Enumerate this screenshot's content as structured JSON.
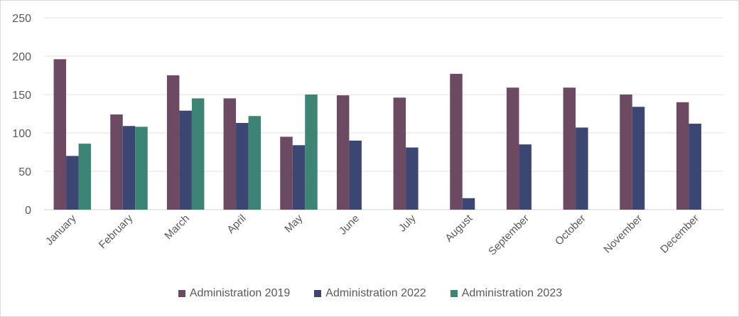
{
  "chart_data": {
    "type": "bar",
    "categories": [
      "January",
      "February",
      "March",
      "April",
      "May",
      "June",
      "July",
      "August",
      "September",
      "October",
      "November",
      "December"
    ],
    "series": [
      {
        "name": "Administration 2019",
        "color": "#6b4a62",
        "values": [
          196,
          124,
          175,
          145,
          95,
          149,
          146,
          177,
          159,
          159,
          150,
          140
        ]
      },
      {
        "name": "Administration 2022",
        "color": "#3c4673",
        "values": [
          70,
          109,
          129,
          113,
          84,
          90,
          81,
          15,
          85,
          107,
          134,
          112
        ]
      },
      {
        "name": "Administration 2023",
        "color": "#3c8473",
        "values": [
          86,
          108,
          145,
          122,
          150,
          null,
          null,
          null,
          null,
          null,
          null,
          null
        ]
      }
    ],
    "ylim": [
      0,
      250
    ],
    "yticks": [
      0,
      50,
      100,
      150,
      200,
      250
    ],
    "grid": true,
    "legend": "bottom",
    "xlabel": "",
    "ylabel": "",
    "title": ""
  }
}
